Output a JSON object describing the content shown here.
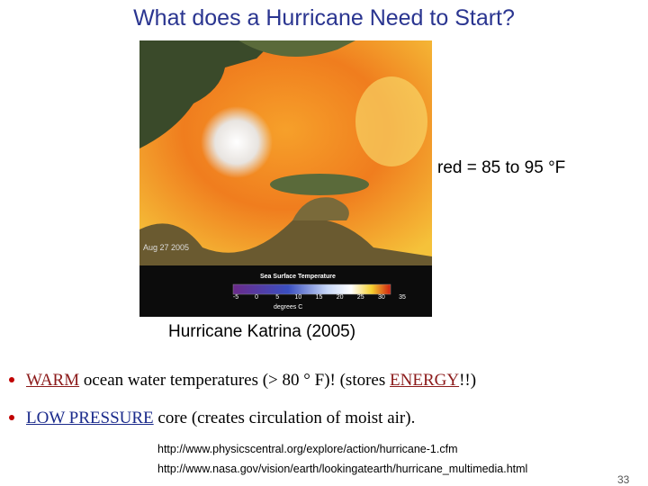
{
  "header": {
    "title": "What does a Hurricane Need to Start?"
  },
  "image": {
    "date": "Aug 27 2005",
    "legend_title": "Sea Surface Temperature",
    "scale": [
      -5,
      0,
      5,
      10,
      15,
      20,
      25,
      30,
      35
    ],
    "scale_unit": "degrees C"
  },
  "note": "red = 85 to 95 °F",
  "caption": "Hurricane Katrina (2005)",
  "bullets": [
    {
      "parts": [
        "WARM",
        " ocean water temperatures (> 80 ° F)!  (stores ",
        "ENERGY",
        "!!)"
      ]
    },
    {
      "parts": [
        "LOW PRESSURE",
        " core  (creates circulation of moist air)."
      ]
    }
  ],
  "links": [
    "http://www.physicscentral.org/explore/action/hurricane-1.cfm",
    "http://www.nasa.gov/vision/earth/lookingatearth/hurricane_multimedia.html"
  ],
  "page_number": "33"
}
